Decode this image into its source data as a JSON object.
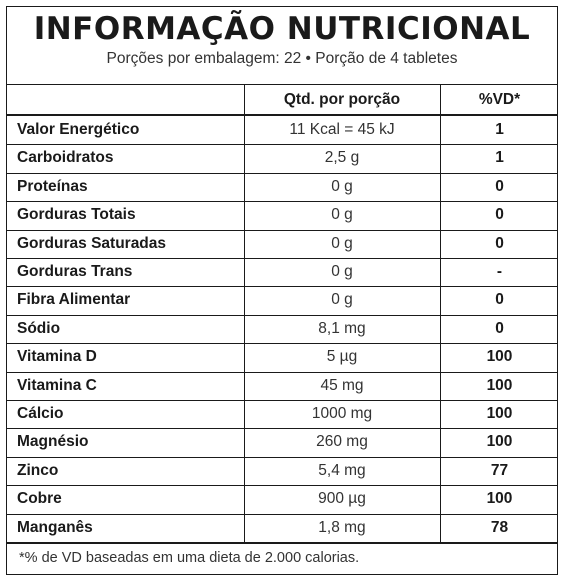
{
  "title": "INFORMAÇÃO NUTRICIONAL",
  "subtitle": "Porções por embalagem: 22 • Porção de 4 tabletes",
  "header": {
    "nutrient": "",
    "qty": "Qtd. por porção",
    "vd": "%VD*"
  },
  "rows": [
    {
      "nutrient": "Valor Energético",
      "qty": "11 Kcal = 45 kJ",
      "vd": "1"
    },
    {
      "nutrient": "Carboidratos",
      "qty": "2,5 g",
      "vd": "1"
    },
    {
      "nutrient": "Proteínas",
      "qty": "0 g",
      "vd": "0"
    },
    {
      "nutrient": "Gorduras Totais",
      "qty": "0 g",
      "vd": "0"
    },
    {
      "nutrient": "Gorduras Saturadas",
      "qty": "0 g",
      "vd": "0"
    },
    {
      "nutrient": "Gorduras Trans",
      "qty": "0 g",
      "vd": "-"
    },
    {
      "nutrient": "Fibra Alimentar",
      "qty": "0 g",
      "vd": "0"
    },
    {
      "nutrient": "Sódio",
      "qty": "8,1 mg",
      "vd": "0"
    },
    {
      "nutrient": "Vitamina D",
      "qty": "5 µg",
      "vd": "100"
    },
    {
      "nutrient": "Vitamina C",
      "qty": "45 mg",
      "vd": "100"
    },
    {
      "nutrient": "Cálcio",
      "qty": "1000 mg",
      "vd": "100"
    },
    {
      "nutrient": "Magnésio",
      "qty": "260 mg",
      "vd": "100"
    },
    {
      "nutrient": "Zinco",
      "qty": "5,4 mg",
      "vd": "77"
    },
    {
      "nutrient": "Cobre",
      "qty": "900 µg",
      "vd": "100"
    },
    {
      "nutrient": "Manganês",
      "qty": "1,8 mg",
      "vd": "78"
    }
  ],
  "footnote": "*% de VD baseadas em uma dieta de 2.000 calorias."
}
